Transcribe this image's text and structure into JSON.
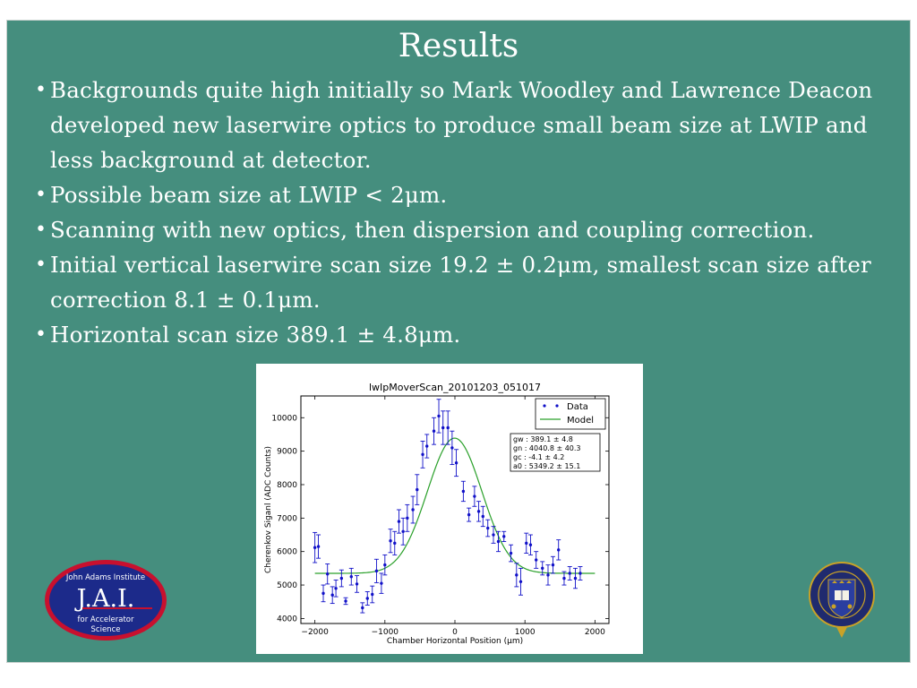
{
  "slide": {
    "title": "Results",
    "bullets": [
      "Backgrounds quite high initially so Mark Woodley and Lawrence Deacon developed new laserwire optics to produce small beam size at LWIP and less background at detector.",
      "Possible beam size at LWIP < 2μm.",
      "Scanning with new optics, then dispersion and coupling correction.",
      "Initial vertical laserwire scan size 19.2 ± 0.2μm, smallest scan size after correction 8.1 ± 0.1μm.",
      "Horizontal scan size 389.1 ± 4.8μm."
    ]
  },
  "logos": {
    "jai": {
      "line1": "John Adams Institute",
      "main": "J.A.I.",
      "line2": "for Accelerator",
      "line3": "Science"
    },
    "oxford": {
      "icon": "oxford-university-crest-icon"
    }
  },
  "colors": {
    "slide_bg": "#458e7e",
    "data_points": "#1010c8",
    "model_line": "#2aa02a"
  },
  "chart_data": {
    "type": "scatter",
    "title": "lwIpMoverScan_20101203_051017",
    "xlabel": "Chamber Horizontal Position (μm)",
    "ylabel": "Cherenkov Siganl (ADC Counts)",
    "xlim": [
      -2200,
      2200
    ],
    "ylim": [
      3850,
      10650
    ],
    "xticks": [
      -2000,
      -1000,
      0,
      1000,
      2000
    ],
    "yticks": [
      4000,
      5000,
      6000,
      7000,
      8000,
      9000,
      10000
    ],
    "xtick_labels": [
      "−2000",
      "−1000",
      "0",
      "1000",
      "2000"
    ],
    "ytick_labels": [
      "4000",
      "5000",
      "6000",
      "7000",
      "8000",
      "9000",
      "10000"
    ],
    "grid": false,
    "legend": {
      "placement": "top-right",
      "entries": [
        "Data",
        "Model"
      ]
    },
    "fit_box_lines": [
      "gw : 389.1 ± 4.8",
      "gn : 4040.8 ± 40.3",
      "gc : -4.1 ± 4.2",
      "a0 : 5349.2 ± 15.1"
    ],
    "model": {
      "gw": 389.1,
      "gn": 4040.8,
      "gc": -4.1,
      "a0": 5349.2
    },
    "series": [
      {
        "name": "Data",
        "points": [
          {
            "x": -2000,
            "y": 6120,
            "err": 450
          },
          {
            "x": -1950,
            "y": 6150,
            "err": 350
          },
          {
            "x": -1880,
            "y": 4750,
            "err": 250
          },
          {
            "x": -1820,
            "y": 5330,
            "err": 300
          },
          {
            "x": -1750,
            "y": 4700,
            "err": 250
          },
          {
            "x": -1700,
            "y": 4900,
            "err": 250
          },
          {
            "x": -1620,
            "y": 5200,
            "err": 250
          },
          {
            "x": -1560,
            "y": 4520,
            "err": 100
          },
          {
            "x": -1480,
            "y": 5250,
            "err": 250
          },
          {
            "x": -1400,
            "y": 5030,
            "err": 250
          },
          {
            "x": -1320,
            "y": 4320,
            "err": 150
          },
          {
            "x": -1250,
            "y": 4600,
            "err": 200
          },
          {
            "x": -1180,
            "y": 4720,
            "err": 250
          },
          {
            "x": -1120,
            "y": 5420,
            "err": 350
          },
          {
            "x": -1050,
            "y": 5050,
            "err": 300
          },
          {
            "x": -1000,
            "y": 5600,
            "err": 300
          },
          {
            "x": -920,
            "y": 6320,
            "err": 350
          },
          {
            "x": -860,
            "y": 6250,
            "err": 350
          },
          {
            "x": -800,
            "y": 6900,
            "err": 350
          },
          {
            "x": -740,
            "y": 6600,
            "err": 400
          },
          {
            "x": -680,
            "y": 7000,
            "err": 400
          },
          {
            "x": -600,
            "y": 7250,
            "err": 400
          },
          {
            "x": -540,
            "y": 7850,
            "err": 450
          },
          {
            "x": -460,
            "y": 8900,
            "err": 400
          },
          {
            "x": -400,
            "y": 9150,
            "err": 350
          },
          {
            "x": -300,
            "y": 9600,
            "err": 400
          },
          {
            "x": -230,
            "y": 10050,
            "err": 500
          },
          {
            "x": -170,
            "y": 9700,
            "err": 500
          },
          {
            "x": -100,
            "y": 9700,
            "err": 500
          },
          {
            "x": -40,
            "y": 9100,
            "err": 500
          },
          {
            "x": 20,
            "y": 8650,
            "err": 400
          },
          {
            "x": 120,
            "y": 7800,
            "err": 300
          },
          {
            "x": 200,
            "y": 7100,
            "err": 200
          },
          {
            "x": 280,
            "y": 7650,
            "err": 300
          },
          {
            "x": 340,
            "y": 7200,
            "err": 300
          },
          {
            "x": 400,
            "y": 7050,
            "err": 300
          },
          {
            "x": 470,
            "y": 6700,
            "err": 250
          },
          {
            "x": 550,
            "y": 6500,
            "err": 250
          },
          {
            "x": 620,
            "y": 6300,
            "err": 300
          },
          {
            "x": 700,
            "y": 6450,
            "err": 150
          },
          {
            "x": 800,
            "y": 5950,
            "err": 250
          },
          {
            "x": 880,
            "y": 5300,
            "err": 350
          },
          {
            "x": 940,
            "y": 5100,
            "err": 400
          },
          {
            "x": 1020,
            "y": 6250,
            "err": 300
          },
          {
            "x": 1080,
            "y": 6200,
            "err": 300
          },
          {
            "x": 1160,
            "y": 5750,
            "err": 250
          },
          {
            "x": 1250,
            "y": 5500,
            "err": 200
          },
          {
            "x": 1330,
            "y": 5300,
            "err": 300
          },
          {
            "x": 1400,
            "y": 5600,
            "err": 250
          },
          {
            "x": 1480,
            "y": 6050,
            "err": 300
          },
          {
            "x": 1560,
            "y": 5200,
            "err": 200
          },
          {
            "x": 1640,
            "y": 5350,
            "err": 200
          },
          {
            "x": 1720,
            "y": 5200,
            "err": 300
          },
          {
            "x": 1790,
            "y": 5350,
            "err": 200
          }
        ]
      },
      {
        "name": "Model"
      }
    ]
  }
}
